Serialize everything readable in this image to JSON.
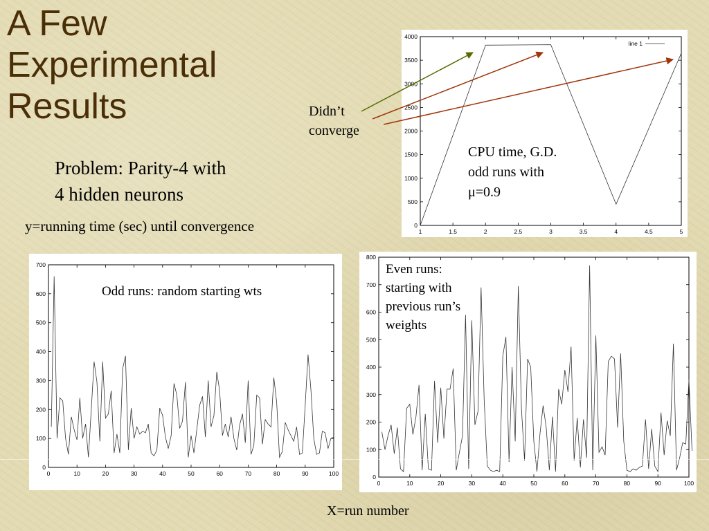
{
  "slide": {
    "title_lines": [
      "A Few",
      "Experimental",
      "Results"
    ],
    "subtitle_lines": [
      "Problem: Parity-4 with",
      "4 hidden neurons"
    ],
    "y_explain": "y=running time (sec) until convergence",
    "x_explain": "X=run number",
    "didnt_converge_lines": [
      "Didn’t",
      "converge"
    ],
    "cpu_note_lines": [
      "CPU time, G.D.",
      "odd runs with",
      "μ=0.9"
    ],
    "odd_note": "Odd runs: random starting wts",
    "even_note_lines": [
      "Even runs:",
      "starting with",
      "previous run’s",
      "weights"
    ],
    "arrow_colors": [
      "#556b00",
      "#a0340a",
      "#a0340a"
    ]
  },
  "chart_data": [
    {
      "type": "line",
      "legend": [
        "line 1"
      ],
      "x": [
        1,
        2,
        3,
        4,
        5
      ],
      "y": [
        0,
        3820,
        3830,
        450,
        3650
      ],
      "xlim": [
        1,
        5
      ],
      "ylim": [
        0,
        4000
      ],
      "xticks": [
        1,
        1.5,
        2,
        2.5,
        3,
        3.5,
        4,
        4.5,
        5
      ],
      "yticks": [
        0,
        500,
        1000,
        1500,
        2000,
        2500,
        3000,
        3500,
        4000
      ]
    },
    {
      "type": "line",
      "x_start": 1,
      "xlim": [
        0,
        100
      ],
      "ylim": [
        0,
        700
      ],
      "xticks": [
        0,
        10,
        20,
        30,
        40,
        50,
        60,
        70,
        80,
        90,
        100
      ],
      "yticks": [
        0,
        100,
        200,
        300,
        400,
        500,
        600,
        700
      ],
      "y": [
        140,
        660,
        100,
        240,
        230,
        100,
        45,
        175,
        130,
        95,
        240,
        100,
        150,
        35,
        200,
        365,
        295,
        90,
        365,
        170,
        185,
        265,
        50,
        115,
        50,
        340,
        385,
        60,
        205,
        100,
        140,
        115,
        125,
        120,
        150,
        50,
        40,
        60,
        205,
        180,
        105,
        65,
        110,
        290,
        250,
        135,
        160,
        295,
        35,
        110,
        50,
        130,
        215,
        245,
        105,
        300,
        140,
        180,
        330,
        265,
        110,
        150,
        105,
        175,
        100,
        60,
        145,
        185,
        85,
        300,
        45,
        75,
        250,
        240,
        80,
        165,
        150,
        140,
        310,
        225,
        35,
        55,
        155,
        130,
        110,
        90,
        140,
        45,
        50,
        215,
        390,
        270,
        100,
        45,
        50,
        125,
        120,
        65,
        100,
        105
      ]
    },
    {
      "type": "line",
      "x_start": 1,
      "xlim": [
        0,
        100
      ],
      "ylim": [
        0,
        800
      ],
      "xticks": [
        0,
        10,
        20,
        30,
        40,
        50,
        60,
        70,
        80,
        90,
        100
      ],
      "yticks": [
        0,
        100,
        200,
        300,
        400,
        500,
        600,
        700,
        800
      ],
      "y": [
        165,
        100,
        150,
        190,
        85,
        180,
        30,
        20,
        250,
        265,
        155,
        220,
        335,
        25,
        230,
        30,
        25,
        350,
        125,
        325,
        140,
        320,
        320,
        395,
        25,
        90,
        150,
        590,
        30,
        570,
        190,
        240,
        690,
        280,
        40,
        25,
        20,
        25,
        20,
        440,
        510,
        55,
        400,
        130,
        695,
        250,
        60,
        430,
        400,
        130,
        20,
        160,
        260,
        180,
        25,
        220,
        20,
        320,
        265,
        390,
        310,
        475,
        60,
        215,
        35,
        210,
        70,
        770,
        25,
        515,
        90,
        110,
        80,
        420,
        440,
        430,
        180,
        450,
        130,
        25,
        20,
        30,
        25,
        35,
        40,
        210,
        30,
        175,
        40,
        20,
        235,
        80,
        205,
        150,
        485,
        25,
        70,
        125,
        120,
        355,
        95
      ]
    }
  ]
}
